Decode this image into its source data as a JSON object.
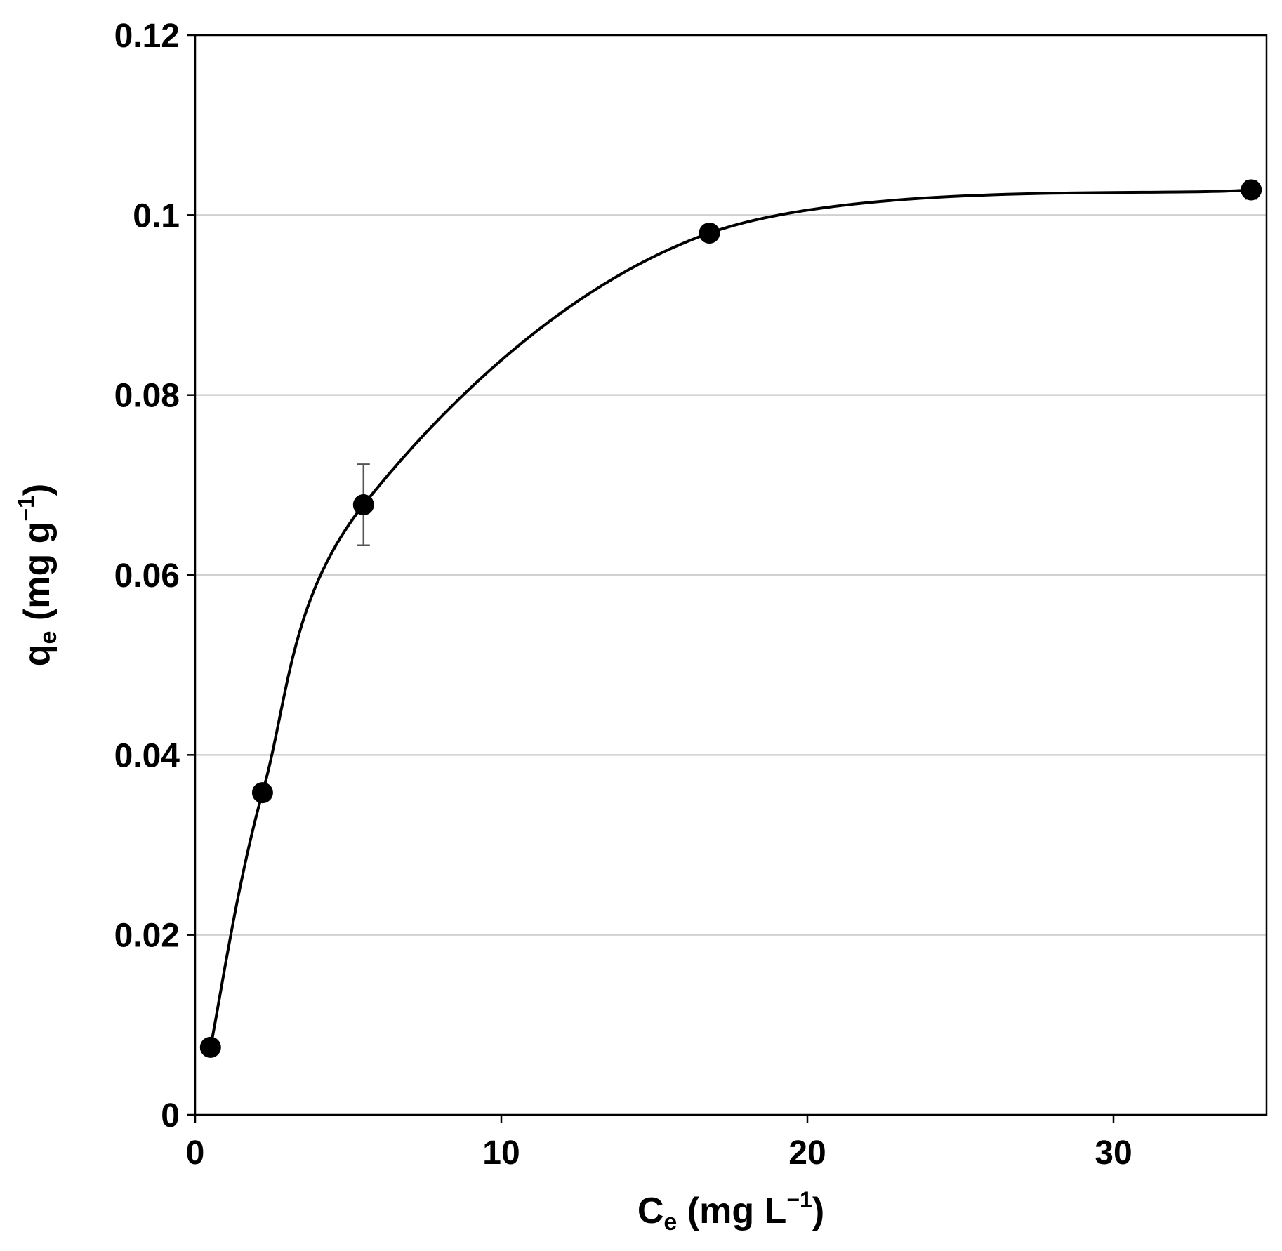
{
  "chart_data": {
    "type": "scatter",
    "title": "",
    "xlabel": {
      "main": "C",
      "sub": "e",
      "units_pre": " (mg L",
      "units_sup": "−1",
      "units_post": ")"
    },
    "ylabel": {
      "main": "q",
      "sub": "e",
      "units_pre": " (mg g",
      "units_sup": "−1",
      "units_post": ")"
    },
    "xlim": [
      0,
      35
    ],
    "ylim": [
      0,
      0.12
    ],
    "x_ticks": [
      0,
      10,
      20,
      30
    ],
    "x_tick_labels": [
      "0",
      "10",
      "20",
      "30"
    ],
    "y_ticks": [
      0,
      0.02,
      0.04,
      0.06,
      0.08,
      0.1,
      0.12
    ],
    "y_tick_labels": [
      "0",
      "0.02",
      "0.04",
      "0.06",
      "0.08",
      "0.1",
      "0.12"
    ],
    "grid": {
      "horizontal": true,
      "vertical": false
    },
    "marker_color": "#000000",
    "line_color": "#000000",
    "error_bar_color": "#555555",
    "grid_color": "#d0d0d0",
    "smooth_line": true,
    "series": [
      {
        "x": [
          0.5,
          2.2,
          5.5,
          16.8,
          34.5
        ],
        "y": [
          0.0075,
          0.0358,
          0.0678,
          0.098,
          0.1028
        ],
        "y_err": [
          0,
          0,
          0.0045,
          0,
          0.001
        ]
      }
    ]
  }
}
